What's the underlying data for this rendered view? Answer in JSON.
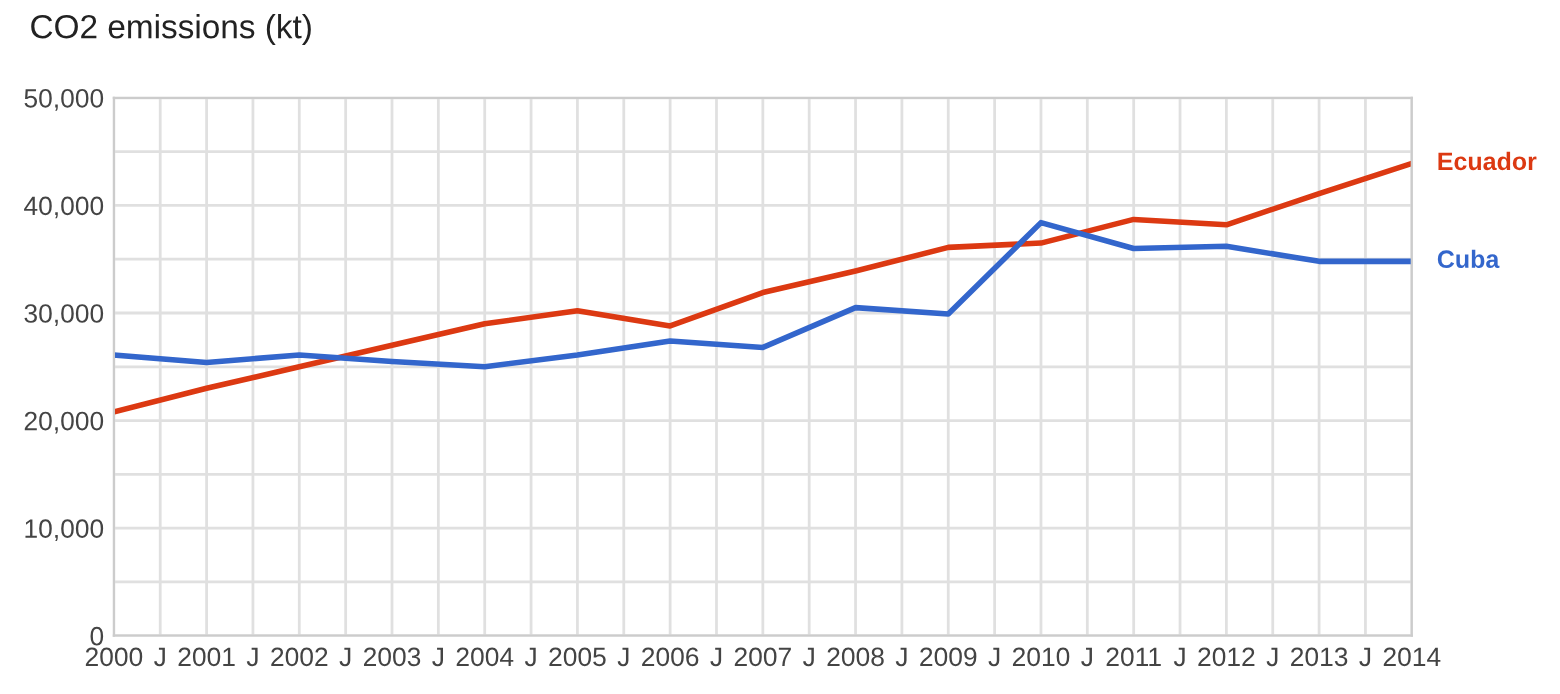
{
  "chart_data": {
    "type": "line",
    "title": "CO2 emissions (kt)",
    "x": [
      2000,
      2001,
      2002,
      2003,
      2004,
      2005,
      2006,
      2007,
      2008,
      2009,
      2010,
      2011,
      2012,
      2013,
      2014
    ],
    "series": [
      {
        "name": "Ecuador",
        "color": "#dc3912",
        "values": [
          20800,
          23000,
          25000,
          27000,
          29000,
          30200,
          28800,
          31900,
          33900,
          36100,
          36500,
          38700,
          38200,
          41100,
          43900
        ]
      },
      {
        "name": "Cuba",
        "color": "#3366cc",
        "values": [
          26100,
          25400,
          26100,
          25500,
          25000,
          26100,
          27400,
          26800,
          30500,
          29900,
          38400,
          36000,
          36200,
          34800,
          34800
        ]
      }
    ],
    "xlim": [
      2000,
      2014
    ],
    "xticks": [
      2000,
      {
        "value": 2000.5,
        "label": "J"
      },
      2001,
      {
        "value": 2001.5,
        "label": "J"
      },
      2002,
      {
        "value": 2002.5,
        "label": "J"
      },
      2003,
      {
        "value": 2003.5,
        "label": "J"
      },
      2004,
      {
        "value": 2004.5,
        "label": "J"
      },
      2005,
      {
        "value": 2005.5,
        "label": "J"
      },
      2006,
      {
        "value": 2006.5,
        "label": "J"
      },
      2007,
      {
        "value": 2007.5,
        "label": "J"
      },
      2008,
      {
        "value": 2008.5,
        "label": "J"
      },
      2009,
      {
        "value": 2009.5,
        "label": "J"
      },
      2010,
      {
        "value": 2010.5,
        "label": "J"
      },
      2011,
      {
        "value": 2011.5,
        "label": "J"
      },
      2012,
      {
        "value": 2012.5,
        "label": "J"
      },
      2013,
      {
        "value": 2013.5,
        "label": "J"
      },
      2014
    ],
    "ylim": [
      0,
      50000
    ],
    "yticks": [
      0,
      {
        "value": 5000,
        "label": null
      },
      {
        "value": 10000,
        "label": "10,000"
      },
      {
        "value": 15000,
        "label": null
      },
      {
        "value": 20000,
        "label": "20,000"
      },
      {
        "value": 25000,
        "label": null
      },
      {
        "value": 30000,
        "label": "30,000"
      },
      {
        "value": 35000,
        "label": null
      },
      {
        "value": 40000,
        "label": "40,000"
      },
      {
        "value": 45000,
        "label": null
      },
      {
        "value": 50000,
        "label": "50,000"
      }
    ],
    "grid": true,
    "line_style": "solid",
    "marker": "none"
  }
}
